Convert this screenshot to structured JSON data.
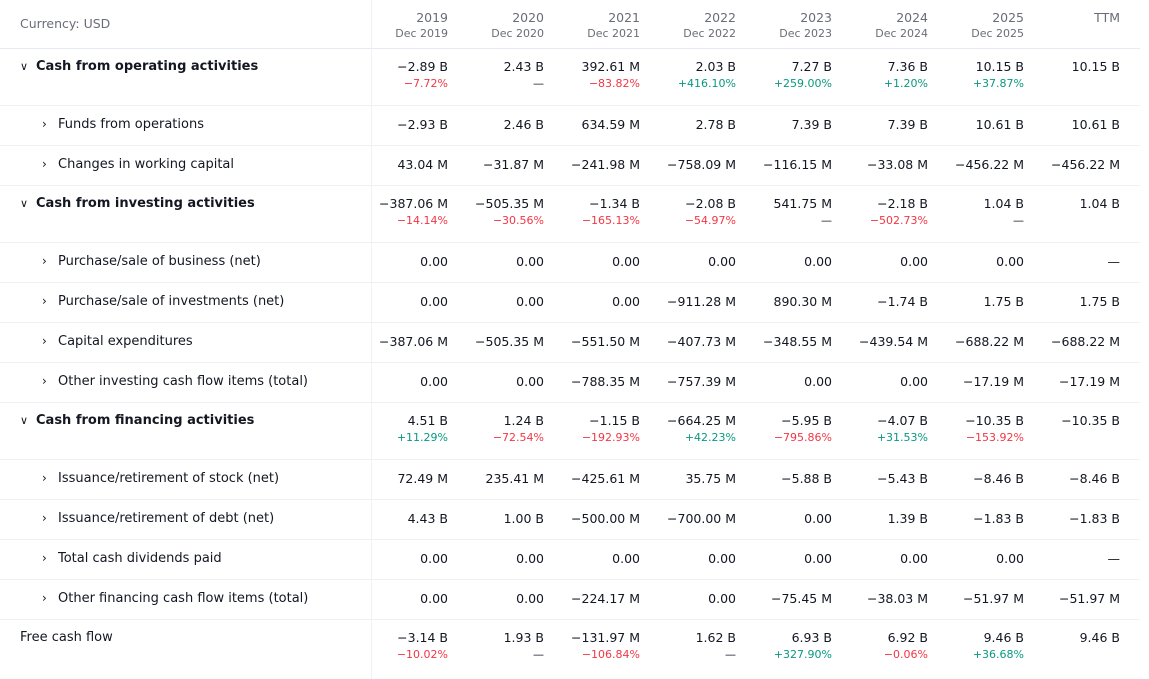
{
  "header": {
    "currency": "Currency: USD",
    "columns": [
      {
        "year": "2019",
        "date": "Dec 2019"
      },
      {
        "year": "2020",
        "date": "Dec 2020"
      },
      {
        "year": "2021",
        "date": "Dec 2021"
      },
      {
        "year": "2022",
        "date": "Dec 2022"
      },
      {
        "year": "2023",
        "date": "Dec 2023"
      },
      {
        "year": "2024",
        "date": "Dec 2024"
      },
      {
        "year": "2025",
        "date": "Dec 2025"
      },
      {
        "year": "TTM",
        "date": ""
      }
    ]
  },
  "rows": [
    {
      "kind": "sec",
      "name": "operating",
      "label": "Cash from operating activities",
      "values": [
        "−2.89 B",
        "2.43 B",
        "392.61 M",
        "2.03 B",
        "7.27 B",
        "7.36 B",
        "10.15 B",
        "10.15 B"
      ],
      "pct": [
        "−7.72%",
        "—",
        "−83.82%",
        "+416.10%",
        "+259.00%",
        "+1.20%",
        "+37.87%",
        ""
      ],
      "pct_dir": [
        "dn",
        "nc",
        "dn",
        "up",
        "up",
        "up",
        "up",
        ""
      ]
    },
    {
      "kind": "sub",
      "name": "funds-from-operations",
      "label": "Funds from operations",
      "values": [
        "−2.93 B",
        "2.46 B",
        "634.59 M",
        "2.78 B",
        "7.39 B",
        "7.39 B",
        "10.61 B",
        "10.61 B"
      ]
    },
    {
      "kind": "sub",
      "name": "changes-in-working-capital",
      "label": "Changes in working capital",
      "values": [
        "43.04 M",
        "−31.87 M",
        "−241.98 M",
        "−758.09 M",
        "−116.15 M",
        "−33.08 M",
        "−456.22 M",
        "−456.22 M"
      ]
    },
    {
      "kind": "sec",
      "name": "investing",
      "label": "Cash from investing activities",
      "values": [
        "−387.06 M",
        "−505.35 M",
        "−1.34 B",
        "−2.08 B",
        "541.75 M",
        "−2.18 B",
        "1.04 B",
        "1.04 B"
      ],
      "pct": [
        "−14.14%",
        "−30.56%",
        "−165.13%",
        "−54.97%",
        "—",
        "−502.73%",
        "—",
        ""
      ],
      "pct_dir": [
        "dn",
        "dn",
        "dn",
        "dn",
        "nc",
        "dn",
        "nc",
        ""
      ]
    },
    {
      "kind": "sub",
      "name": "purchase-sale-of-business",
      "label": "Purchase/sale of business (net)",
      "values": [
        "0.00",
        "0.00",
        "0.00",
        "0.00",
        "0.00",
        "0.00",
        "0.00",
        "—"
      ]
    },
    {
      "kind": "sub",
      "name": "purchase-sale-of-investments",
      "label": "Purchase/sale of investments (net)",
      "values": [
        "0.00",
        "0.00",
        "0.00",
        "−911.28 M",
        "890.30 M",
        "−1.74 B",
        "1.75 B",
        "1.75 B"
      ]
    },
    {
      "kind": "sub",
      "name": "capital-expenditures",
      "label": "Capital expenditures",
      "values": [
        "−387.06 M",
        "−505.35 M",
        "−551.50 M",
        "−407.73 M",
        "−348.55 M",
        "−439.54 M",
        "−688.22 M",
        "−688.22 M"
      ]
    },
    {
      "kind": "sub",
      "name": "other-investing-items",
      "label": "Other investing cash flow items (total)",
      "values": [
        "0.00",
        "0.00",
        "−788.35 M",
        "−757.39 M",
        "0.00",
        "0.00",
        "−17.19 M",
        "−17.19 M"
      ]
    },
    {
      "kind": "sec",
      "name": "financing",
      "label": "Cash from financing activities",
      "values": [
        "4.51 B",
        "1.24 B",
        "−1.15 B",
        "−664.25 M",
        "−5.95 B",
        "−4.07 B",
        "−10.35 B",
        "−10.35 B"
      ],
      "pct": [
        "+11.29%",
        "−72.54%",
        "−192.93%",
        "+42.23%",
        "−795.86%",
        "+31.53%",
        "−153.92%",
        ""
      ],
      "pct_dir": [
        "up",
        "dn",
        "dn",
        "up",
        "dn",
        "up",
        "dn",
        ""
      ]
    },
    {
      "kind": "sub",
      "name": "issuance-retirement-of-stock",
      "label": "Issuance/retirement of stock (net)",
      "values": [
        "72.49 M",
        "235.41 M",
        "−425.61 M",
        "35.75 M",
        "−5.88 B",
        "−5.43 B",
        "−8.46 B",
        "−8.46 B"
      ]
    },
    {
      "kind": "sub",
      "name": "issuance-retirement-of-debt",
      "label": "Issuance/retirement of debt (net)",
      "values": [
        "4.43 B",
        "1.00 B",
        "−500.00 M",
        "−700.00 M",
        "0.00",
        "1.39 B",
        "−1.83 B",
        "−1.83 B"
      ]
    },
    {
      "kind": "sub",
      "name": "total-cash-dividends",
      "label": "Total cash dividends paid",
      "values": [
        "0.00",
        "0.00",
        "0.00",
        "0.00",
        "0.00",
        "0.00",
        "0.00",
        "—"
      ]
    },
    {
      "kind": "sub",
      "name": "other-financing-items",
      "label": "Other financing cash flow items (total)",
      "values": [
        "0.00",
        "0.00",
        "−224.17 M",
        "0.00",
        "−75.45 M",
        "−38.03 M",
        "−51.97 M",
        "−51.97 M"
      ]
    },
    {
      "kind": "fcf",
      "name": "free-cash-flow",
      "label": "Free cash flow",
      "values": [
        "−3.14 B",
        "1.93 B",
        "−131.97 M",
        "1.62 B",
        "6.93 B",
        "6.92 B",
        "9.46 B",
        "9.46 B"
      ],
      "pct": [
        "−10.02%",
        "—",
        "−106.84%",
        "—",
        "+327.90%",
        "−0.06%",
        "+36.68%",
        ""
      ],
      "pct_dir": [
        "dn",
        "nc",
        "dn",
        "nc",
        "up",
        "dn",
        "up",
        ""
      ]
    }
  ],
  "icons": {
    "expanded": "chevron-down-icon",
    "collapsed": "chevron-right-icon"
  },
  "colors": {
    "positive": "#089981",
    "negative": "#f23645",
    "muted": "#6a6d78"
  }
}
